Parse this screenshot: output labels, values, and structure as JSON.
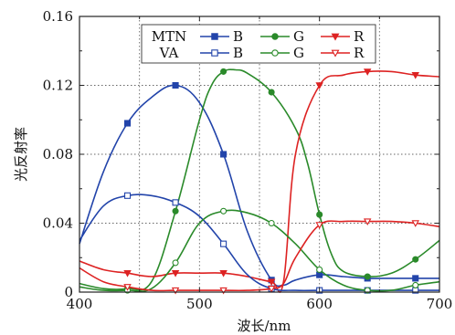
{
  "chart_data": {
    "type": "line",
    "xlabel": "波长/nm",
    "ylabel": "光反射率",
    "xlim": [
      400,
      700
    ],
    "ylim": [
      0,
      0.16
    ],
    "xticks": [
      400,
      500,
      600,
      700
    ],
    "yticks": [
      0,
      0.04,
      0.08,
      0.12,
      0.16
    ],
    "xtick_labels": [
      "400",
      "500",
      "600",
      "700"
    ],
    "ytick_labels": [
      "0",
      "0.04",
      "0.08",
      "0.12",
      "0.16"
    ],
    "grid": true,
    "legend": {
      "placement": "top-center",
      "row_labels": [
        "MTN",
        "VA"
      ],
      "series_labels": [
        "B",
        "G",
        "R"
      ]
    },
    "series": [
      {
        "name": "B",
        "group": "MTN",
        "color": "#2244aa",
        "marker": "square",
        "filled": true,
        "x": [
          400,
          420,
          440,
          460,
          480,
          500,
          520,
          540,
          560,
          570,
          580,
          600,
          620,
          640,
          660,
          680,
          700
        ],
        "y": [
          0.028,
          0.07,
          0.098,
          0.113,
          0.12,
          0.11,
          0.08,
          0.035,
          0.007,
          0.004,
          0.007,
          0.01,
          0.009,
          0.008,
          0.008,
          0.008,
          0.008
        ]
      },
      {
        "name": "G",
        "group": "MTN",
        "color": "#2a8a2a",
        "marker": "circle",
        "filled": true,
        "x": [
          400,
          420,
          440,
          460,
          480,
          500,
          510,
          520,
          530,
          540,
          560,
          580,
          590,
          600,
          610,
          620,
          640,
          660,
          680,
          700
        ],
        "y": [
          0.005,
          0.002,
          0.002,
          0.006,
          0.047,
          0.1,
          0.12,
          0.128,
          0.129,
          0.127,
          0.116,
          0.095,
          0.075,
          0.045,
          0.022,
          0.012,
          0.009,
          0.011,
          0.019,
          0.03
        ]
      },
      {
        "name": "R",
        "group": "MTN",
        "color": "#dd2222",
        "marker": "triangle-down",
        "filled": true,
        "x": [
          400,
          420,
          440,
          460,
          480,
          500,
          520,
          540,
          560,
          570,
          580,
          600,
          620,
          640,
          660,
          680,
          700
        ],
        "y": [
          0.018,
          0.013,
          0.011,
          0.009,
          0.011,
          0.011,
          0.011,
          0.009,
          0.006,
          0.006,
          0.08,
          0.12,
          0.126,
          0.128,
          0.128,
          0.126,
          0.125
        ]
      },
      {
        "name": "B",
        "group": "VA",
        "color": "#2244aa",
        "marker": "square",
        "filled": false,
        "x": [
          400,
          420,
          440,
          460,
          480,
          500,
          520,
          540,
          560,
          580,
          600,
          620,
          640,
          660,
          680,
          700
        ],
        "y": [
          0.03,
          0.05,
          0.056,
          0.056,
          0.052,
          0.044,
          0.028,
          0.01,
          0.002,
          0.001,
          0.001,
          0.001,
          0.001,
          0.001,
          0.001,
          0.001
        ]
      },
      {
        "name": "G",
        "group": "VA",
        "color": "#2a8a2a",
        "marker": "circle",
        "filled": false,
        "x": [
          400,
          420,
          440,
          460,
          480,
          500,
          520,
          540,
          560,
          580,
          600,
          620,
          640,
          660,
          680,
          700
        ],
        "y": [
          0.003,
          0.001,
          0.001,
          0.002,
          0.017,
          0.04,
          0.047,
          0.046,
          0.04,
          0.028,
          0.013,
          0.004,
          0.001,
          0.001,
          0.004,
          0.006
        ]
      },
      {
        "name": "R",
        "group": "VA",
        "color": "#dd2222",
        "marker": "triangle-down",
        "filled": false,
        "x": [
          400,
          420,
          440,
          460,
          480,
          500,
          520,
          540,
          560,
          570,
          580,
          600,
          620,
          640,
          660,
          680,
          700
        ],
        "y": [
          0.014,
          0.006,
          0.003,
          0.001,
          0.001,
          0.001,
          0.001,
          0.001,
          0.002,
          0.005,
          0.02,
          0.039,
          0.041,
          0.041,
          0.041,
          0.04,
          0.038
        ]
      }
    ]
  }
}
